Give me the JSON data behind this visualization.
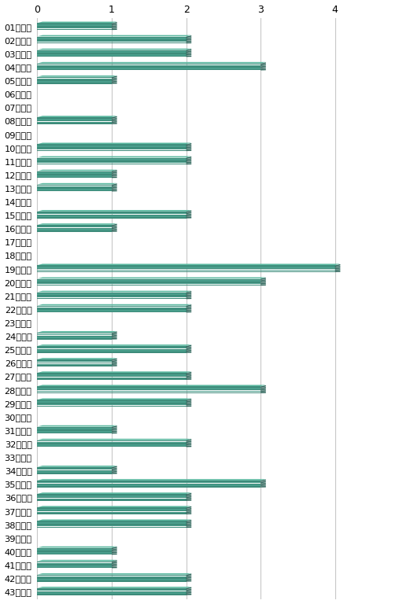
{
  "labels": [
    "01は１回",
    "02は２回",
    "03は２回",
    "04は３回",
    "05は１回",
    "06は０回",
    "07は０回",
    "08は１回",
    "09は０回",
    "10は２回",
    "11は２回",
    "12は１回",
    "13は１回",
    "14は０回",
    "15は２回",
    "16は１回",
    "17は０回",
    "18は０回",
    "19は４回",
    "20は３回",
    "21は２回",
    "22は２回",
    "23は０回",
    "24は１回",
    "25は２回",
    "26は１回",
    "27は２回",
    "28は３回",
    "29は２回",
    "30は０回",
    "31は１回",
    "32は２回",
    "33は０回",
    "34は１回",
    "35は３回",
    "36は２回",
    "37は２回",
    "38は２回",
    "39は０回",
    "40は１回",
    "41は１回",
    "42は２回",
    "43は２回"
  ],
  "values": [
    1,
    2,
    2,
    3,
    1,
    0,
    0,
    1,
    0,
    2,
    2,
    1,
    1,
    0,
    2,
    1,
    0,
    0,
    4,
    3,
    2,
    2,
    0,
    1,
    2,
    1,
    2,
    3,
    2,
    0,
    1,
    2,
    0,
    1,
    3,
    2,
    2,
    2,
    0,
    1,
    1,
    2,
    2
  ],
  "bar_color_front": "#3d8b7a",
  "bar_color_side": "#2a6358",
  "bar_color_top": "#5bb8a0",
  "bar_color_front2": "#4a9e8c",
  "xlim": [
    0,
    4.8
  ],
  "xticks": [
    0,
    1,
    2,
    3,
    4
  ],
  "background_color": "#ffffff",
  "grid_color": "#c8c8c8",
  "label_fontsize": 8.2,
  "tick_fontsize": 9,
  "fig_width": 5.07,
  "fig_height": 7.68,
  "dpi": 100
}
